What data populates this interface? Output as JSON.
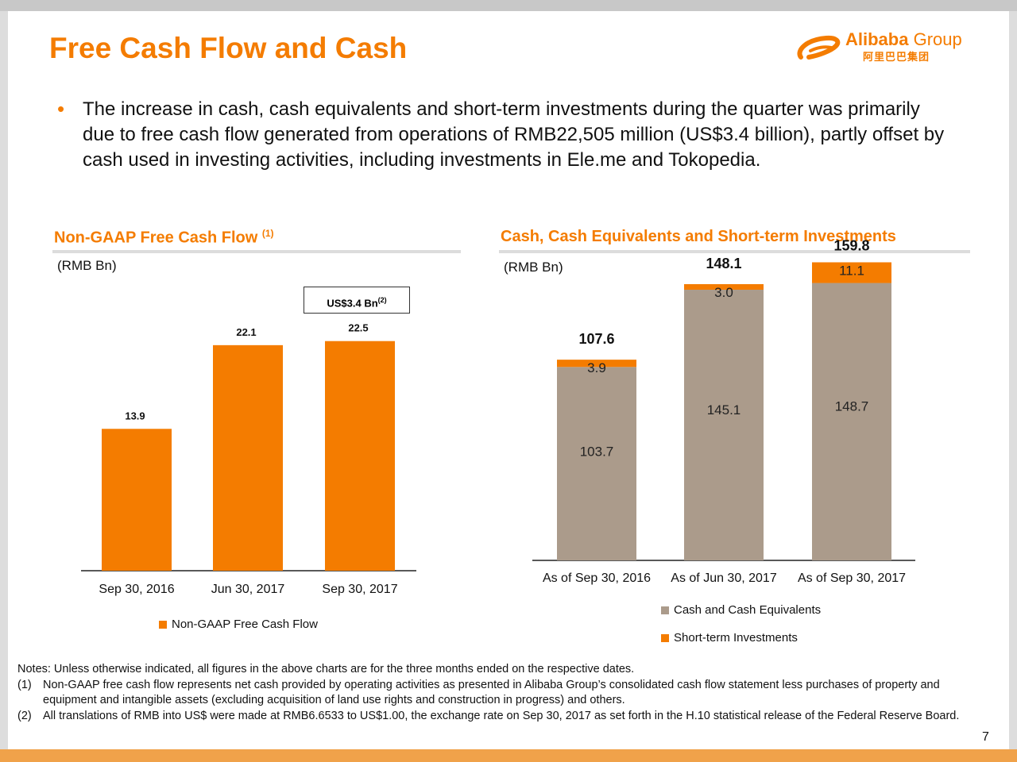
{
  "slide": {
    "title": "Free Cash Flow and Cash",
    "page_number": "7",
    "bullet": "The increase in cash, cash equivalents and short-term investments during the quarter was primarily due to free cash flow generated from operations of RMB22,505 million (US$3.4 billion), partly offset by cash used in investing activities, including investments in Ele.me and Tokopedia.",
    "logo": {
      "wordmark": "Alibaba",
      "group": "Group",
      "chinese": "阿里巴巴集团"
    }
  },
  "left_panel": {
    "heading": "Non-GAAP Free Cash Flow",
    "heading_note": "(1)",
    "unit": "(RMB Bn)",
    "callout": "US$3.4 Bn",
    "callout_note": "(2)",
    "legend": "Non-GAAP Free Cash Flow"
  },
  "right_panel": {
    "heading": "Cash, Cash Equivalents and Short-term Investments",
    "unit": "(RMB Bn)",
    "legend_cash": "Cash and Cash Equivalents",
    "legend_sti": "Short-term Investments"
  },
  "colors": {
    "accent": "#f47c00",
    "cash": "#ab9b8b",
    "rule": "#dcdcdc"
  },
  "chart_data": [
    {
      "type": "bar",
      "categories": [
        "Sep 30, 2016",
        "Jun 30, 2017",
        "Sep 30, 2017"
      ],
      "series": [
        {
          "name": "Non-GAAP Free Cash Flow",
          "values": [
            13.9,
            22.1,
            22.5
          ],
          "color": "#f47c00"
        }
      ],
      "data_labels": [
        "13.9",
        "22.1",
        "22.5"
      ],
      "title": "Non-GAAP Free Cash Flow",
      "ylabel": "(RMB Bn)",
      "ylim": [
        0,
        28
      ],
      "grid": false,
      "legend": "bottom"
    },
    {
      "type": "bar",
      "stacked": true,
      "categories": [
        "As of Sep 30, 2016",
        "As of Jun 30, 2017",
        "As of Sep 30, 2017"
      ],
      "series": [
        {
          "name": "Cash and Cash Equivalents",
          "values": [
            103.7,
            145.1,
            148.7
          ],
          "labels": [
            "103.7",
            "145.1",
            "148.7"
          ],
          "color": "#ab9b8b"
        },
        {
          "name": "Short-term Investments",
          "values": [
            3.9,
            3.0,
            11.1
          ],
          "labels": [
            "3.9",
            "3.0",
            "11.1"
          ],
          "color": "#f47c00"
        }
      ],
      "totals": [
        "107.6",
        "148.1",
        "159.8"
      ],
      "title": "Cash, Cash Equivalents and Short-term Investments",
      "ylabel": "(RMB Bn)",
      "ylim": [
        0,
        180
      ],
      "grid": false,
      "legend": "bottom"
    }
  ],
  "notes": {
    "intro": "Notes: Unless otherwise indicated, all figures in the above charts are for the three months ended on the respective dates.",
    "items": [
      {
        "num": "(1)",
        "text": "Non-GAAP free cash flow represents net cash provided by operating activities as presented in Alibaba Group’s consolidated cash flow statement less purchases of property and equipment and intangible assets (excluding acquisition of land use rights and construction in progress) and others."
      },
      {
        "num": "(2)",
        "text": "All translations of RMB into US$ were made at RMB6.6533 to US$1.00, the exchange rate on Sep 30, 2017 as set forth in the H.10 statistical release of the Federal Reserve Board."
      }
    ]
  }
}
